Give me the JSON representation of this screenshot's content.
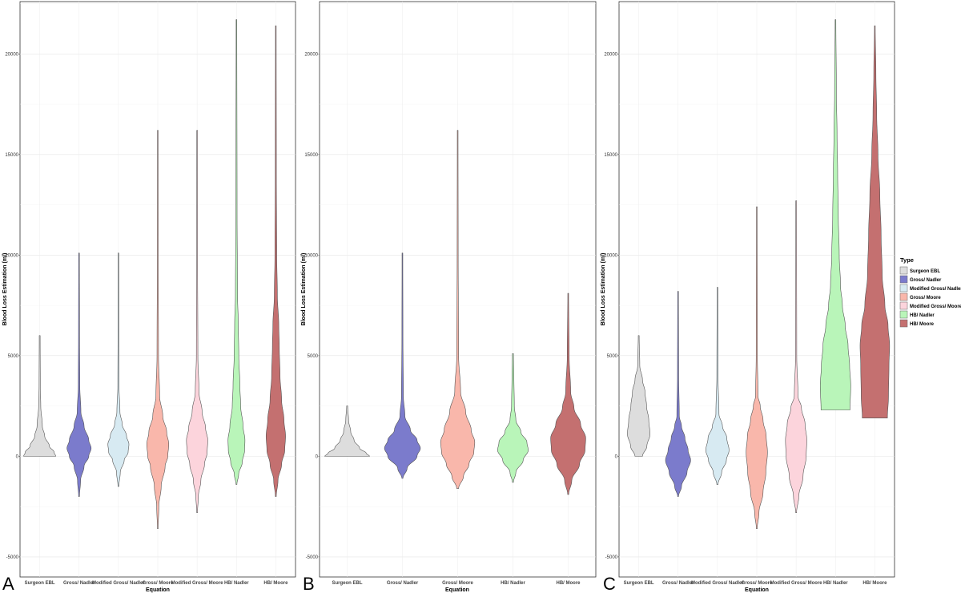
{
  "legend": {
    "title": "Type",
    "items": [
      {
        "label": "Surgeon EBL",
        "color": "#dddddd"
      },
      {
        "label": "Gross/ Nadler",
        "color": "#7b7bcc"
      },
      {
        "label": "Modified Gross/ Nadler",
        "color": "#d7eaf2"
      },
      {
        "label": "Gross/ Moore",
        "color": "#f9b7ab"
      },
      {
        "label": "Modified Gross/ Moore",
        "color": "#fcd4dc"
      },
      {
        "label": "HB/ Nadler",
        "color": "#b9f5b9"
      },
      {
        "label": "HB/ Moore",
        "color": "#c47070"
      }
    ]
  },
  "chart_data": [
    {
      "type": "violin",
      "panel_label": "A",
      "xlabel": "Equation",
      "ylabel": "Blood Loss Estimation (ml)",
      "ylim": [
        -6000,
        22600
      ],
      "yticks": [
        -5000,
        0,
        5000,
        10000,
        15000,
        20000
      ],
      "grid": true,
      "categories": [
        "Surgeon EBL",
        "Gross/ Nadler",
        "Modified Gross/ Nadler",
        "Gross/ Moore",
        "Modified Gross/ Moore",
        "HB/ Nadler",
        "HB/ Moore"
      ],
      "violins": [
        {
          "category": "Surgeon EBL",
          "min": 0,
          "max": 6000,
          "profile": [
            [
              0,
              1.0
            ],
            [
              200,
              0.9
            ],
            [
              500,
              0.6
            ],
            [
              1000,
              0.3
            ],
            [
              1500,
              0.15
            ],
            [
              2500,
              0.05
            ],
            [
              3500,
              0.02
            ],
            [
              6000,
              0.01
            ]
          ]
        },
        {
          "category": "Gross/ Nadler",
          "min": -2000,
          "max": 10100,
          "profile": [
            [
              -2000,
              0.01
            ],
            [
              -1200,
              0.08
            ],
            [
              -500,
              0.3
            ],
            [
              0,
              0.6
            ],
            [
              400,
              0.75
            ],
            [
              800,
              0.6
            ],
            [
              1500,
              0.3
            ],
            [
              2200,
              0.1
            ],
            [
              3500,
              0.03
            ],
            [
              6000,
              0.015
            ],
            [
              10100,
              0.005
            ]
          ]
        },
        {
          "category": "Modified Gross/ Nadler",
          "min": -1500,
          "max": 10100,
          "profile": [
            [
              -1500,
              0.01
            ],
            [
              -800,
              0.1
            ],
            [
              -200,
              0.35
            ],
            [
              200,
              0.6
            ],
            [
              600,
              0.65
            ],
            [
              1000,
              0.5
            ],
            [
              1600,
              0.22
            ],
            [
              2200,
              0.08
            ],
            [
              3500,
              0.02
            ],
            [
              6000,
              0.01
            ],
            [
              10100,
              0.004
            ]
          ]
        },
        {
          "category": "Gross/ Moore",
          "min": -3600,
          "max": 16200,
          "profile": [
            [
              -3600,
              0.005
            ],
            [
              -2500,
              0.05
            ],
            [
              -1500,
              0.2
            ],
            [
              -500,
              0.45
            ],
            [
              0,
              0.62
            ],
            [
              600,
              0.68
            ],
            [
              1200,
              0.55
            ],
            [
              2000,
              0.3
            ],
            [
              3000,
              0.1
            ],
            [
              5000,
              0.03
            ],
            [
              10000,
              0.01
            ],
            [
              16200,
              0.004
            ]
          ]
        },
        {
          "category": "Modified Gross/ Moore",
          "min": -2800,
          "max": 16200,
          "profile": [
            [
              -2800,
              0.005
            ],
            [
              -2000,
              0.06
            ],
            [
              -1200,
              0.22
            ],
            [
              -400,
              0.45
            ],
            [
              200,
              0.62
            ],
            [
              800,
              0.66
            ],
            [
              1400,
              0.52
            ],
            [
              2200,
              0.3
            ],
            [
              3200,
              0.1
            ],
            [
              5000,
              0.03
            ],
            [
              10000,
              0.01
            ],
            [
              16200,
              0.004
            ]
          ]
        },
        {
          "category": "HB/ Nadler",
          "min": -1400,
          "max": 21700,
          "profile": [
            [
              -1400,
              0.01
            ],
            [
              -900,
              0.12
            ],
            [
              -300,
              0.35
            ],
            [
              300,
              0.5
            ],
            [
              800,
              0.52
            ],
            [
              1500,
              0.4
            ],
            [
              2500,
              0.25
            ],
            [
              3500,
              0.2
            ],
            [
              5000,
              0.13
            ],
            [
              6500,
              0.1
            ],
            [
              8000,
              0.05
            ],
            [
              12000,
              0.02
            ],
            [
              21700,
              0.004
            ]
          ]
        },
        {
          "category": "HB/ Moore",
          "min": -2000,
          "max": 21400,
          "profile": [
            [
              -2000,
              0.01
            ],
            [
              -1200,
              0.12
            ],
            [
              -400,
              0.35
            ],
            [
              300,
              0.55
            ],
            [
              1000,
              0.6
            ],
            [
              1800,
              0.5
            ],
            [
              2800,
              0.35
            ],
            [
              4000,
              0.25
            ],
            [
              5500,
              0.2
            ],
            [
              6500,
              0.17
            ],
            [
              8000,
              0.08
            ],
            [
              10000,
              0.04
            ],
            [
              14000,
              0.015
            ],
            [
              21400,
              0.004
            ]
          ]
        }
      ]
    },
    {
      "type": "violin",
      "panel_label": "B",
      "xlabel": "Equation",
      "ylabel": "Blood Loss Estimation (ml)",
      "ylim": [
        -6000,
        22600
      ],
      "yticks": [
        -5000,
        0,
        5000,
        10000,
        15000,
        20000
      ],
      "grid": true,
      "categories": [
        "Surgeon EBL",
        "Gross/ Nadler",
        "Gross/ Moore",
        "HB/ Nadler",
        "HB/ Moore"
      ],
      "violins": [
        {
          "category": "Surgeon EBL",
          "min": 0,
          "max": 2500,
          "profile": [
            [
              0,
              1.0
            ],
            [
              150,
              0.85
            ],
            [
              400,
              0.55
            ],
            [
              800,
              0.3
            ],
            [
              1200,
              0.15
            ],
            [
              1800,
              0.05
            ],
            [
              2500,
              0.01
            ]
          ]
        },
        {
          "category": "Gross/ Nadler",
          "min": -1100,
          "max": 10100,
          "profile": [
            [
              -1100,
              0.01
            ],
            [
              -600,
              0.2
            ],
            [
              0,
              0.65
            ],
            [
              400,
              0.8
            ],
            [
              800,
              0.65
            ],
            [
              1300,
              0.35
            ],
            [
              2000,
              0.1
            ],
            [
              3000,
              0.03
            ],
            [
              6000,
              0.01
            ],
            [
              10100,
              0.004
            ]
          ]
        },
        {
          "category": "Gross/ Moore",
          "min": -1600,
          "max": 16200,
          "profile": [
            [
              -1600,
              0.03
            ],
            [
              -1000,
              0.25
            ],
            [
              -400,
              0.5
            ],
            [
              200,
              0.72
            ],
            [
              700,
              0.76
            ],
            [
              1300,
              0.6
            ],
            [
              2200,
              0.35
            ],
            [
              3200,
              0.12
            ],
            [
              5000,
              0.03
            ],
            [
              10000,
              0.01
            ],
            [
              16200,
              0.004
            ]
          ]
        },
        {
          "category": "HB/ Nadler",
          "min": -1300,
          "max": 5100,
          "profile": [
            [
              -1300,
              0.01
            ],
            [
              -800,
              0.12
            ],
            [
              -200,
              0.45
            ],
            [
              300,
              0.68
            ],
            [
              700,
              0.62
            ],
            [
              1200,
              0.35
            ],
            [
              1800,
              0.12
            ],
            [
              2500,
              0.05
            ],
            [
              4000,
              0.03
            ],
            [
              5100,
              0.01
            ]
          ]
        },
        {
          "category": "HB/ Moore",
          "min": -1900,
          "max": 8100,
          "profile": [
            [
              -1900,
              0.01
            ],
            [
              -1200,
              0.15
            ],
            [
              -400,
              0.5
            ],
            [
              300,
              0.75
            ],
            [
              900,
              0.78
            ],
            [
              1600,
              0.55
            ],
            [
              2400,
              0.25
            ],
            [
              3200,
              0.1
            ],
            [
              5000,
              0.03
            ],
            [
              8100,
              0.005
            ]
          ]
        }
      ]
    },
    {
      "type": "violin",
      "panel_label": "C",
      "xlabel": "Equation",
      "ylabel": "Blood Loss Estimation (ml)",
      "ylim": [
        -6000,
        22600
      ],
      "yticks": [
        -5000,
        0,
        5000,
        10000,
        15000,
        20000
      ],
      "grid": true,
      "categories": [
        "Surgeon EBL",
        "Gross/ Nadler",
        "Modified Gross/ Nadler",
        "Gross/ Moore",
        "Modified Gross/ Moore",
        "HB/ Nadler",
        "HB/ Moore"
      ],
      "violins": [
        {
          "category": "Surgeon EBL",
          "min": 0,
          "max": 6000,
          "profile": [
            [
              0,
              0.22
            ],
            [
              500,
              0.5
            ],
            [
              1100,
              0.7
            ],
            [
              1800,
              0.62
            ],
            [
              2500,
              0.48
            ],
            [
              3200,
              0.38
            ],
            [
              3800,
              0.22
            ],
            [
              4500,
              0.05
            ],
            [
              6000,
              0.01
            ]
          ]
        },
        {
          "category": "Gross/ Nadler",
          "min": -2000,
          "max": 8200,
          "profile": [
            [
              -2000,
              0.01
            ],
            [
              -1500,
              0.2
            ],
            [
              -800,
              0.55
            ],
            [
              -200,
              0.78
            ],
            [
              300,
              0.62
            ],
            [
              900,
              0.42
            ],
            [
              1500,
              0.2
            ],
            [
              2000,
              0.06
            ],
            [
              4000,
              0.02
            ],
            [
              8200,
              0.005
            ]
          ]
        },
        {
          "category": "Modified Gross/ Nadler",
          "min": -1400,
          "max": 8400,
          "profile": [
            [
              -1400,
              0.02
            ],
            [
              -800,
              0.25
            ],
            [
              -200,
              0.55
            ],
            [
              300,
              0.72
            ],
            [
              900,
              0.58
            ],
            [
              1500,
              0.3
            ],
            [
              2100,
              0.08
            ],
            [
              4000,
              0.02
            ],
            [
              8400,
              0.005
            ]
          ]
        },
        {
          "category": "Gross/ Moore",
          "min": -3600,
          "max": 12400,
          "profile": [
            [
              -3600,
              0.01
            ],
            [
              -2800,
              0.12
            ],
            [
              -1800,
              0.38
            ],
            [
              -800,
              0.56
            ],
            [
              200,
              0.66
            ],
            [
              1000,
              0.58
            ],
            [
              1800,
              0.38
            ],
            [
              2500,
              0.2
            ],
            [
              3000,
              0.06
            ],
            [
              5000,
              0.02
            ],
            [
              12400,
              0.005
            ]
          ]
        },
        {
          "category": "Modified Gross/ Moore",
          "min": -2800,
          "max": 12700,
          "profile": [
            [
              -2800,
              0.01
            ],
            [
              -2000,
              0.15
            ],
            [
              -1000,
              0.42
            ],
            [
              0,
              0.62
            ],
            [
              800,
              0.66
            ],
            [
              1600,
              0.55
            ],
            [
              2400,
              0.32
            ],
            [
              3000,
              0.1
            ],
            [
              5000,
              0.02
            ],
            [
              12700,
              0.005
            ]
          ]
        },
        {
          "category": "HB/ Nadler",
          "min": 2300,
          "max": 21700,
          "profile": [
            [
              2300,
              0.9
            ],
            [
              3500,
              0.95
            ],
            [
              4500,
              0.88
            ],
            [
              5500,
              0.78
            ],
            [
              6500,
              0.6
            ],
            [
              7500,
              0.42
            ],
            [
              8500,
              0.3
            ],
            [
              10000,
              0.22
            ],
            [
              12000,
              0.16
            ],
            [
              14000,
              0.12
            ],
            [
              16000,
              0.08
            ],
            [
              18000,
              0.04
            ],
            [
              21700,
              0.005
            ]
          ]
        },
        {
          "category": "HB/ Moore",
          "min": 1900,
          "max": 21400,
          "profile": [
            [
              1900,
              0.78
            ],
            [
              3000,
              0.85
            ],
            [
              4500,
              0.88
            ],
            [
              5500,
              0.92
            ],
            [
              6500,
              0.82
            ],
            [
              7500,
              0.62
            ],
            [
              9000,
              0.45
            ],
            [
              11000,
              0.38
            ],
            [
              13000,
              0.3
            ],
            [
              15000,
              0.18
            ],
            [
              17000,
              0.1
            ],
            [
              19000,
              0.05
            ],
            [
              21400,
              0.005
            ]
          ]
        }
      ]
    }
  ]
}
